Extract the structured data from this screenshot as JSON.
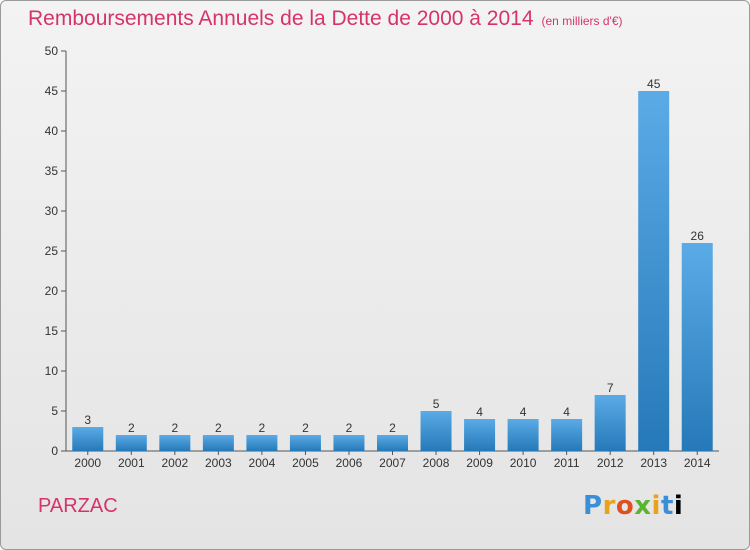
{
  "header": {
    "title": "Remboursements Annuels de la Dette de 2000 à 2014",
    "unit": "(en milliers d'€)"
  },
  "footer": {
    "commune": "PARZAC",
    "logo_letters": [
      "P",
      "r",
      "o",
      "x",
      "i",
      "t",
      "i"
    ]
  },
  "colors": {
    "title": "#d6336c",
    "bar_top": "#5aabe6",
    "bar_bottom": "#2679b8"
  },
  "chart_data": {
    "type": "bar",
    "categories": [
      "2000",
      "2001",
      "2002",
      "2003",
      "2004",
      "2005",
      "2006",
      "2007",
      "2008",
      "2009",
      "2010",
      "2011",
      "2012",
      "2013",
      "2014"
    ],
    "values": [
      3,
      2,
      2,
      2,
      2,
      2,
      2,
      2,
      5,
      4,
      4,
      4,
      7,
      45,
      26
    ],
    "ylim": [
      0,
      50
    ],
    "yticks": [
      0,
      5,
      10,
      15,
      20,
      25,
      30,
      35,
      40,
      45,
      50
    ],
    "grid": false,
    "legend": "none"
  }
}
